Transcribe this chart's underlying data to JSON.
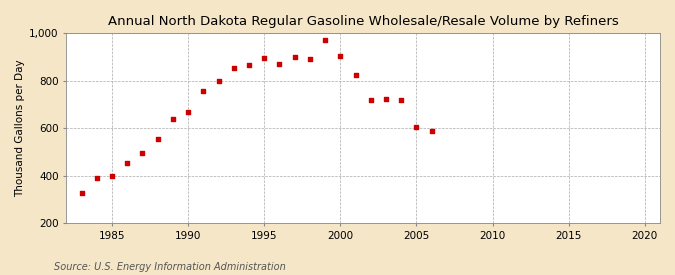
{
  "title": "Annual North Dakota Regular Gasoline Wholesale/Resale Volume by Refiners",
  "ylabel": "Thousand Gallons per Day",
  "source": "Source: U.S. Energy Information Administration",
  "figure_bg": "#f5e6c8",
  "axes_bg": "#ffffff",
  "marker_color": "#cc0000",
  "years": [
    1983,
    1984,
    1985,
    1986,
    1987,
    1988,
    1989,
    1990,
    1991,
    1992,
    1993,
    1994,
    1995,
    1996,
    1997,
    1998,
    1999,
    2000,
    2001,
    2002,
    2003,
    2004,
    2005,
    2006
  ],
  "values": [
    325,
    390,
    400,
    455,
    495,
    555,
    640,
    670,
    755,
    800,
    855,
    865,
    895,
    870,
    900,
    890,
    970,
    905,
    825,
    720,
    725,
    720,
    605,
    590
  ],
  "xlim": [
    1982,
    2021
  ],
  "ylim": [
    200,
    1000
  ],
  "xticks": [
    1985,
    1990,
    1995,
    2000,
    2005,
    2010,
    2015,
    2020
  ],
  "yticks": [
    200,
    400,
    600,
    800,
    1000
  ],
  "ytick_labels": [
    "200",
    "400",
    "600",
    "800",
    "1,000"
  ],
  "title_fontsize": 9.5,
  "label_fontsize": 7.5,
  "tick_fontsize": 7.5,
  "source_fontsize": 7.0,
  "marker_size": 12
}
